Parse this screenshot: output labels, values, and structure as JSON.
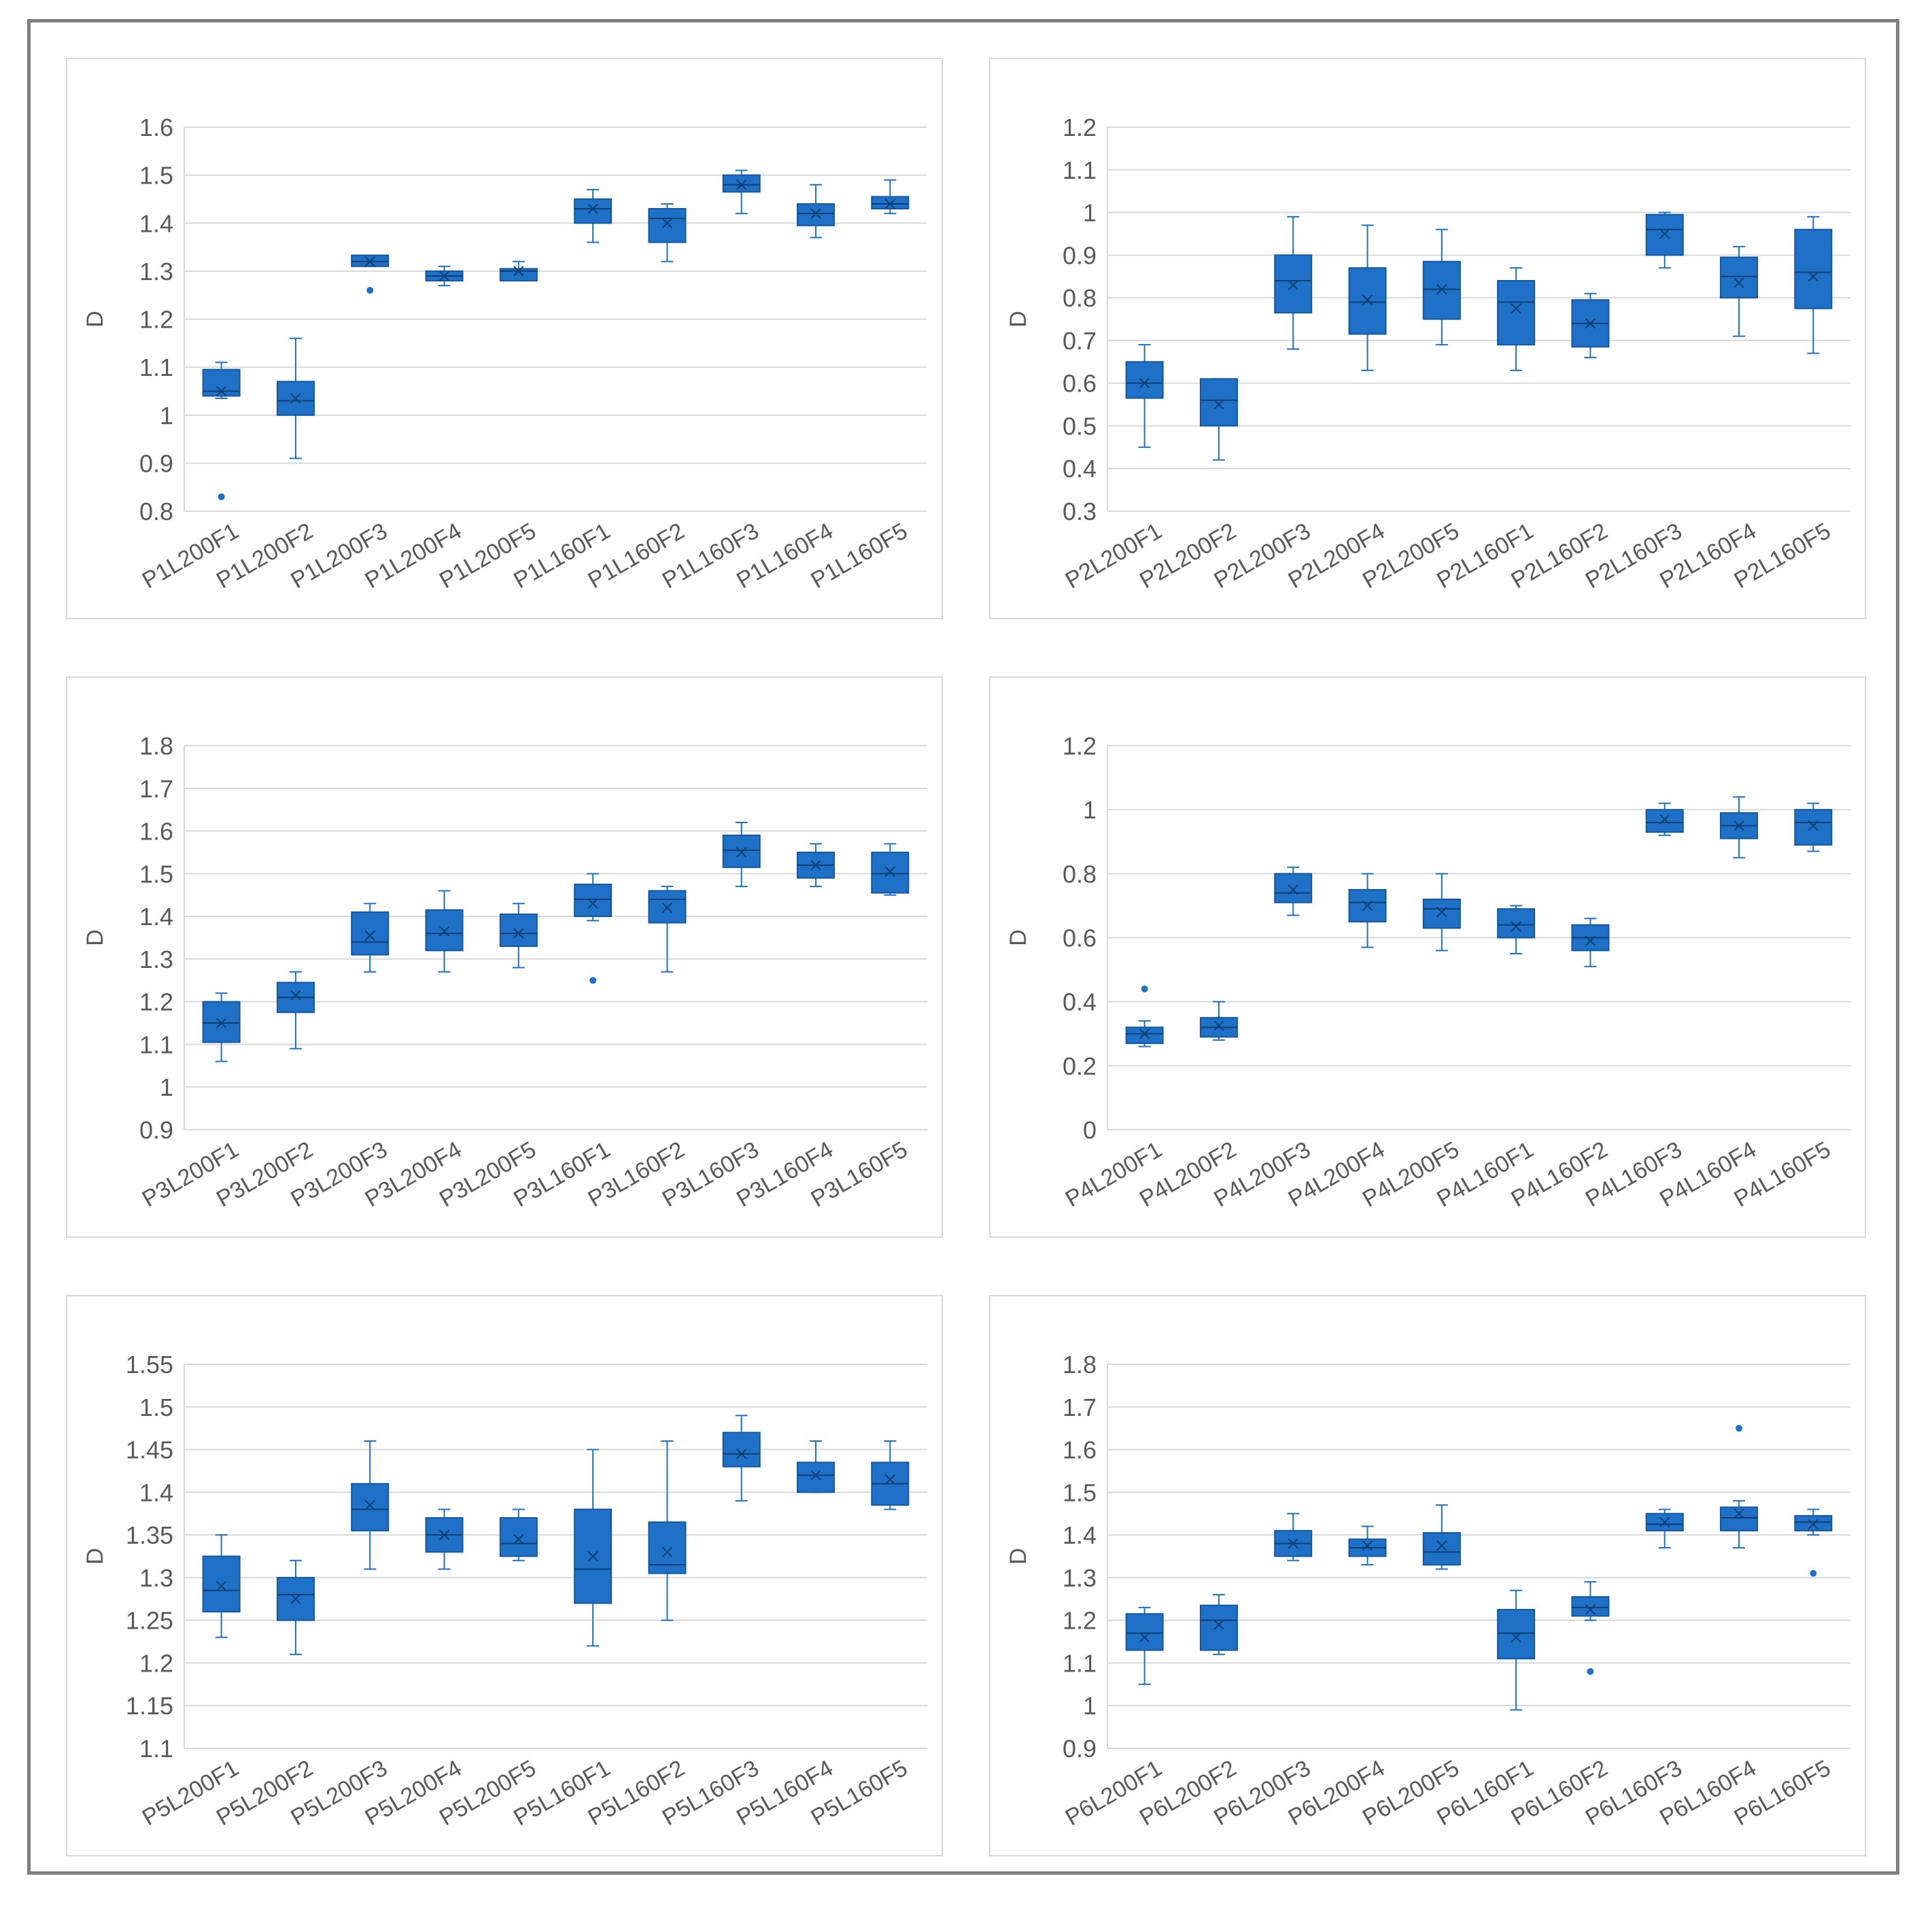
{
  "colors": {
    "box": "#1f71c8",
    "box_stroke": "#1457a0",
    "grid": "#d9d9d9",
    "text": "#595959",
    "mean_marker": "#0e3f73"
  },
  "chart_data": [
    {
      "type": "boxplot",
      "ylabel": "D",
      "ylim": [
        0.8,
        1.6
      ],
      "yticks": [
        "0.8",
        "0.9",
        "1",
        "1.1",
        "1.2",
        "1.3",
        "1.4",
        "1.5",
        "1.6"
      ],
      "categories": [
        "P1L200F1",
        "P1L200F2",
        "P1L200F3",
        "P1L200F4",
        "P1L200F5",
        "P1L160F1",
        "P1L160F2",
        "P1L160F3",
        "P1L160F4",
        "P1L160F5"
      ],
      "boxes": [
        {
          "min": 1.035,
          "q1": 1.04,
          "median": 1.05,
          "q3": 1.095,
          "max": 1.11,
          "mean": 1.05,
          "outliers": [
            0.83
          ]
        },
        {
          "min": 0.91,
          "q1": 1.0,
          "median": 1.03,
          "q3": 1.07,
          "max": 1.16,
          "mean": 1.035,
          "outliers": []
        },
        {
          "min": 1.31,
          "q1": 1.31,
          "median": 1.32,
          "q3": 1.333,
          "max": 1.333,
          "mean": 1.32,
          "outliers": [
            1.26
          ]
        },
        {
          "min": 1.27,
          "q1": 1.28,
          "median": 1.29,
          "q3": 1.3,
          "max": 1.31,
          "mean": 1.29,
          "outliers": []
        },
        {
          "min": 1.28,
          "q1": 1.28,
          "median": 1.3,
          "q3": 1.305,
          "max": 1.32,
          "mean": 1.3,
          "outliers": []
        },
        {
          "min": 1.36,
          "q1": 1.4,
          "median": 1.43,
          "q3": 1.45,
          "max": 1.47,
          "mean": 1.43,
          "outliers": []
        },
        {
          "min": 1.32,
          "q1": 1.36,
          "median": 1.41,
          "q3": 1.43,
          "max": 1.44,
          "mean": 1.4,
          "outliers": []
        },
        {
          "min": 1.42,
          "q1": 1.465,
          "median": 1.48,
          "q3": 1.5,
          "max": 1.51,
          "mean": 1.48,
          "outliers": []
        },
        {
          "min": 1.37,
          "q1": 1.395,
          "median": 1.42,
          "q3": 1.44,
          "max": 1.48,
          "mean": 1.42,
          "outliers": []
        },
        {
          "min": 1.42,
          "q1": 1.43,
          "median": 1.44,
          "q3": 1.455,
          "max": 1.49,
          "mean": 1.44,
          "outliers": []
        }
      ]
    },
    {
      "type": "boxplot",
      "ylabel": "D",
      "ylim": [
        0.3,
        1.2
      ],
      "yticks": [
        "0.3",
        "0.4",
        "0.5",
        "0.6",
        "0.7",
        "0.8",
        "0.9",
        "1",
        "1.1",
        "1.2"
      ],
      "categories": [
        "P2L200F1",
        "P2L200F2",
        "P2L200F3",
        "P2L200F4",
        "P2L200F5",
        "P2L160F1",
        "P2L160F2",
        "P2L160F3",
        "P2L160F4",
        "P2L160F5"
      ],
      "boxes": [
        {
          "min": 0.45,
          "q1": 0.565,
          "median": 0.6,
          "q3": 0.65,
          "max": 0.69,
          "mean": 0.6,
          "outliers": []
        },
        {
          "min": 0.42,
          "q1": 0.5,
          "median": 0.56,
          "q3": 0.61,
          "max": 0.61,
          "mean": 0.55,
          "outliers": []
        },
        {
          "min": 0.68,
          "q1": 0.765,
          "median": 0.84,
          "q3": 0.9,
          "max": 0.99,
          "mean": 0.83,
          "outliers": []
        },
        {
          "min": 0.63,
          "q1": 0.715,
          "median": 0.79,
          "q3": 0.87,
          "max": 0.97,
          "mean": 0.795,
          "outliers": []
        },
        {
          "min": 0.69,
          "q1": 0.75,
          "median": 0.82,
          "q3": 0.885,
          "max": 0.96,
          "mean": 0.82,
          "outliers": []
        },
        {
          "min": 0.63,
          "q1": 0.69,
          "median": 0.79,
          "q3": 0.84,
          "max": 0.87,
          "mean": 0.775,
          "outliers": []
        },
        {
          "min": 0.66,
          "q1": 0.685,
          "median": 0.74,
          "q3": 0.795,
          "max": 0.81,
          "mean": 0.74,
          "outliers": []
        },
        {
          "min": 0.87,
          "q1": 0.9,
          "median": 0.96,
          "q3": 0.995,
          "max": 1.0,
          "mean": 0.95,
          "outliers": []
        },
        {
          "min": 0.71,
          "q1": 0.8,
          "median": 0.85,
          "q3": 0.895,
          "max": 0.92,
          "mean": 0.835,
          "outliers": []
        },
        {
          "min": 0.67,
          "q1": 0.775,
          "median": 0.86,
          "q3": 0.96,
          "max": 0.99,
          "mean": 0.85,
          "outliers": []
        }
      ]
    },
    {
      "type": "boxplot",
      "ylabel": "D",
      "ylim": [
        0.9,
        1.8
      ],
      "yticks": [
        "0.9",
        "1",
        "1.1",
        "1.2",
        "1.3",
        "1.4",
        "1.5",
        "1.6",
        "1.7",
        "1.8"
      ],
      "categories": [
        "P3L200F1",
        "P3L200F2",
        "P3L200F3",
        "P3L200F4",
        "P3L200F5",
        "P3L160F1",
        "P3L160F2",
        "P3L160F3",
        "P3L160F4",
        "P3L160F5"
      ],
      "boxes": [
        {
          "min": 1.06,
          "q1": 1.105,
          "median": 1.15,
          "q3": 1.2,
          "max": 1.22,
          "mean": 1.15,
          "outliers": []
        },
        {
          "min": 1.09,
          "q1": 1.175,
          "median": 1.21,
          "q3": 1.245,
          "max": 1.27,
          "mean": 1.215,
          "outliers": []
        },
        {
          "min": 1.27,
          "q1": 1.31,
          "median": 1.34,
          "q3": 1.41,
          "max": 1.43,
          "mean": 1.355,
          "outliers": []
        },
        {
          "min": 1.27,
          "q1": 1.32,
          "median": 1.36,
          "q3": 1.415,
          "max": 1.46,
          "mean": 1.365,
          "outliers": []
        },
        {
          "min": 1.28,
          "q1": 1.33,
          "median": 1.36,
          "q3": 1.405,
          "max": 1.43,
          "mean": 1.36,
          "outliers": []
        },
        {
          "min": 1.39,
          "q1": 1.4,
          "median": 1.44,
          "q3": 1.475,
          "max": 1.5,
          "mean": 1.43,
          "outliers": [
            1.25
          ]
        },
        {
          "min": 1.27,
          "q1": 1.385,
          "median": 1.44,
          "q3": 1.46,
          "max": 1.47,
          "mean": 1.42,
          "outliers": []
        },
        {
          "min": 1.47,
          "q1": 1.515,
          "median": 1.555,
          "q3": 1.59,
          "max": 1.62,
          "mean": 1.55,
          "outliers": []
        },
        {
          "min": 1.47,
          "q1": 1.49,
          "median": 1.52,
          "q3": 1.55,
          "max": 1.57,
          "mean": 1.52,
          "outliers": []
        },
        {
          "min": 1.45,
          "q1": 1.455,
          "median": 1.5,
          "q3": 1.55,
          "max": 1.57,
          "mean": 1.505,
          "outliers": []
        }
      ]
    },
    {
      "type": "boxplot",
      "ylabel": "D",
      "ylim": [
        0,
        1.2
      ],
      "yticks": [
        "0",
        "0.2",
        "0.4",
        "0.6",
        "0.8",
        "1",
        "1.2"
      ],
      "categories": [
        "P4L200F1",
        "P4L200F2",
        "P4L200F3",
        "P4L200F4",
        "P4L200F5",
        "P4L160F1",
        "P4L160F2",
        "P4L160F3",
        "P4L160F4",
        "P4L160F5"
      ],
      "boxes": [
        {
          "min": 0.26,
          "q1": 0.27,
          "median": 0.3,
          "q3": 0.32,
          "max": 0.34,
          "mean": 0.3,
          "outliers": [
            0.44
          ]
        },
        {
          "min": 0.28,
          "q1": 0.29,
          "median": 0.32,
          "q3": 0.35,
          "max": 0.4,
          "mean": 0.325,
          "outliers": []
        },
        {
          "min": 0.67,
          "q1": 0.71,
          "median": 0.74,
          "q3": 0.8,
          "max": 0.82,
          "mean": 0.75,
          "outliers": []
        },
        {
          "min": 0.57,
          "q1": 0.65,
          "median": 0.71,
          "q3": 0.75,
          "max": 0.8,
          "mean": 0.7,
          "outliers": []
        },
        {
          "min": 0.56,
          "q1": 0.63,
          "median": 0.69,
          "q3": 0.72,
          "max": 0.8,
          "mean": 0.68,
          "outliers": []
        },
        {
          "min": 0.55,
          "q1": 0.6,
          "median": 0.64,
          "q3": 0.69,
          "max": 0.7,
          "mean": 0.635,
          "outliers": []
        },
        {
          "min": 0.51,
          "q1": 0.56,
          "median": 0.6,
          "q3": 0.64,
          "max": 0.66,
          "mean": 0.59,
          "outliers": []
        },
        {
          "min": 0.92,
          "q1": 0.93,
          "median": 0.96,
          "q3": 1.0,
          "max": 1.02,
          "mean": 0.97,
          "outliers": []
        },
        {
          "min": 0.85,
          "q1": 0.91,
          "median": 0.95,
          "q3": 0.99,
          "max": 1.04,
          "mean": 0.95,
          "outliers": []
        },
        {
          "min": 0.87,
          "q1": 0.89,
          "median": 0.96,
          "q3": 1.0,
          "max": 1.02,
          "mean": 0.95,
          "outliers": []
        }
      ]
    },
    {
      "type": "boxplot",
      "ylabel": "D",
      "ylim": [
        1.1,
        1.55
      ],
      "yticks": [
        "1.1",
        "1.15",
        "1.2",
        "1.25",
        "1.3",
        "1.35",
        "1.4",
        "1.45",
        "1.5",
        "1.55"
      ],
      "categories": [
        "P5L200F1",
        "P5L200F2",
        "P5L200F3",
        "P5L200F4",
        "P5L200F5",
        "P5L160F1",
        "P5L160F2",
        "P5L160F3",
        "P5L160F4",
        "P5L160F5"
      ],
      "boxes": [
        {
          "min": 1.23,
          "q1": 1.26,
          "median": 1.285,
          "q3": 1.325,
          "max": 1.35,
          "mean": 1.29,
          "outliers": []
        },
        {
          "min": 1.21,
          "q1": 1.25,
          "median": 1.28,
          "q3": 1.3,
          "max": 1.32,
          "mean": 1.275,
          "outliers": []
        },
        {
          "min": 1.31,
          "q1": 1.355,
          "median": 1.38,
          "q3": 1.41,
          "max": 1.46,
          "mean": 1.385,
          "outliers": []
        },
        {
          "min": 1.31,
          "q1": 1.33,
          "median": 1.35,
          "q3": 1.37,
          "max": 1.38,
          "mean": 1.35,
          "outliers": []
        },
        {
          "min": 1.32,
          "q1": 1.325,
          "median": 1.34,
          "q3": 1.37,
          "max": 1.38,
          "mean": 1.345,
          "outliers": []
        },
        {
          "min": 1.22,
          "q1": 1.27,
          "median": 1.31,
          "q3": 1.38,
          "max": 1.45,
          "mean": 1.325,
          "outliers": []
        },
        {
          "min": 1.25,
          "q1": 1.305,
          "median": 1.315,
          "q3": 1.365,
          "max": 1.46,
          "mean": 1.33,
          "outliers": []
        },
        {
          "min": 1.39,
          "q1": 1.43,
          "median": 1.445,
          "q3": 1.47,
          "max": 1.49,
          "mean": 1.445,
          "outliers": []
        },
        {
          "min": 1.4,
          "q1": 1.4,
          "median": 1.42,
          "q3": 1.435,
          "max": 1.46,
          "mean": 1.42,
          "outliers": []
        },
        {
          "min": 1.38,
          "q1": 1.385,
          "median": 1.41,
          "q3": 1.435,
          "max": 1.46,
          "mean": 1.415,
          "outliers": []
        }
      ]
    },
    {
      "type": "boxplot",
      "ylabel": "D",
      "ylim": [
        0.9,
        1.8
      ],
      "yticks": [
        "0.9",
        "1",
        "1.1",
        "1.2",
        "1.3",
        "1.4",
        "1.5",
        "1.6",
        "1.7",
        "1.8"
      ],
      "categories": [
        "P6L200F1",
        "P6L200F2",
        "P6L200F3",
        "P6L200F4",
        "P6L200F5",
        "P6L160F1",
        "P6L160F2",
        "P6L160F3",
        "P6L160F4",
        "P6L160F5"
      ],
      "boxes": [
        {
          "min": 1.05,
          "q1": 1.13,
          "median": 1.17,
          "q3": 1.215,
          "max": 1.23,
          "mean": 1.16,
          "outliers": []
        },
        {
          "min": 1.12,
          "q1": 1.13,
          "median": 1.2,
          "q3": 1.235,
          "max": 1.26,
          "mean": 1.19,
          "outliers": []
        },
        {
          "min": 1.34,
          "q1": 1.35,
          "median": 1.38,
          "q3": 1.41,
          "max": 1.45,
          "mean": 1.38,
          "outliers": []
        },
        {
          "min": 1.33,
          "q1": 1.35,
          "median": 1.37,
          "q3": 1.39,
          "max": 1.42,
          "mean": 1.375,
          "outliers": []
        },
        {
          "min": 1.32,
          "q1": 1.33,
          "median": 1.36,
          "q3": 1.405,
          "max": 1.47,
          "mean": 1.375,
          "outliers": []
        },
        {
          "min": 0.99,
          "q1": 1.11,
          "median": 1.17,
          "q3": 1.225,
          "max": 1.27,
          "mean": 1.16,
          "outliers": []
        },
        {
          "min": 1.2,
          "q1": 1.21,
          "median": 1.23,
          "q3": 1.255,
          "max": 1.29,
          "mean": 1.225,
          "outliers": [
            1.08
          ]
        },
        {
          "min": 1.37,
          "q1": 1.41,
          "median": 1.425,
          "q3": 1.45,
          "max": 1.46,
          "mean": 1.43,
          "outliers": []
        },
        {
          "min": 1.37,
          "q1": 1.41,
          "median": 1.44,
          "q3": 1.465,
          "max": 1.48,
          "mean": 1.45,
          "outliers": [
            1.65
          ]
        },
        {
          "min": 1.4,
          "q1": 1.41,
          "median": 1.43,
          "q3": 1.445,
          "max": 1.46,
          "mean": 1.425,
          "outliers": [
            1.31
          ]
        }
      ]
    }
  ]
}
